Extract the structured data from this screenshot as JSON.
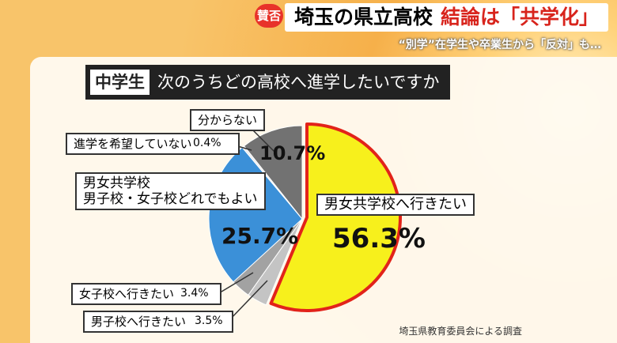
{
  "header": {
    "badge": "賛否",
    "title": "埼玉の県立高校",
    "headline": "結論は「共学化」",
    "subtitle": "“別学”在学生や卒業生から「反対」も…"
  },
  "chart_data": {
    "type": "pie",
    "title_tag": "中学生",
    "title": "次のうちどの高校へ進学したいですか",
    "categories": [
      "男女共学校へ行きたい",
      "男子校へ行きたい",
      "女子校へ行きたい",
      "男女共学校\n男子校・女子校どれでもよい",
      "進学を希望していない",
      "分からない"
    ],
    "values": [
      56.3,
      3.5,
      3.4,
      25.7,
      0.4,
      10.7
    ],
    "value_labels": [
      "56.3%",
      "3.5%",
      "3.4%",
      "25.7%",
      "0.4%",
      "10.7%"
    ],
    "colors": [
      "#f7f01c",
      "#c4c4c4",
      "#a2a2a2",
      "#3b90d8",
      "#ececec",
      "#727272"
    ],
    "source": "埼玉県教育委員会による調査"
  }
}
